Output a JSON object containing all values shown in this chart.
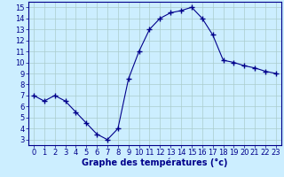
{
  "x": [
    0,
    1,
    2,
    3,
    4,
    5,
    6,
    7,
    8,
    9,
    10,
    11,
    12,
    13,
    14,
    15,
    16,
    17,
    18,
    19,
    20,
    21,
    22,
    23
  ],
  "y": [
    7.0,
    6.5,
    7.0,
    6.5,
    5.5,
    4.5,
    3.5,
    3.0,
    4.0,
    8.5,
    11.0,
    13.0,
    14.0,
    14.5,
    14.7,
    15.0,
    14.0,
    12.5,
    10.2,
    10.0,
    9.7,
    9.5,
    9.2,
    9.0
  ],
  "line_color": "#00008B",
  "marker": "+",
  "marker_size": 4,
  "background_color": "#cceeff",
  "grid_color": "#aacccc",
  "xlabel": "Graphe des températures (°c)",
  "xlabel_fontsize": 7,
  "xlabel_color": "#00008B",
  "xlabel_fontweight": "bold",
  "tick_color": "#00008B",
  "tick_fontsize": 6,
  "xlim": [
    -0.5,
    23.5
  ],
  "ylim": [
    2.5,
    15.5
  ],
  "yticks": [
    3,
    4,
    5,
    6,
    7,
    8,
    9,
    10,
    11,
    12,
    13,
    14,
    15
  ],
  "xticks": [
    0,
    1,
    2,
    3,
    4,
    5,
    6,
    7,
    8,
    9,
    10,
    11,
    12,
    13,
    14,
    15,
    16,
    17,
    18,
    19,
    20,
    21,
    22,
    23
  ]
}
